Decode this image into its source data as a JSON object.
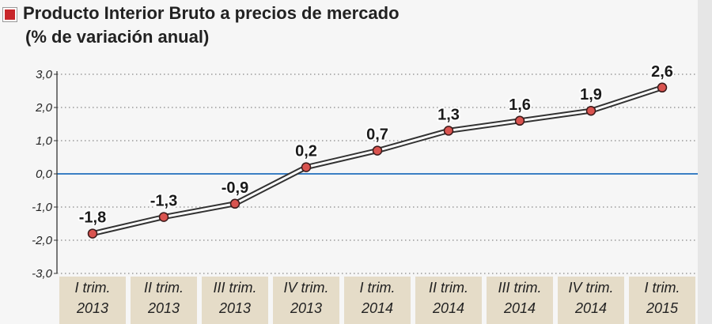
{
  "header": {
    "title": "Producto Interior Bruto a precios de mercado",
    "subtitle": "(% de variación anual)",
    "marker_color": "#c8262a"
  },
  "chart_data": {
    "type": "line",
    "title": "Producto Interior Bruto a precios de mercado",
    "subtitle": "(% de variación anual)",
    "categories": [
      [
        "I trim.",
        "2013"
      ],
      [
        "II trim.",
        "2013"
      ],
      [
        "III trim.",
        "2013"
      ],
      [
        "IV trim.",
        "2013"
      ],
      [
        "I trim.",
        "2014"
      ],
      [
        "II trim.",
        "2014"
      ],
      [
        "III trim.",
        "2014"
      ],
      [
        "IV trim.",
        "2014"
      ],
      [
        "I trim.",
        "2015"
      ]
    ],
    "values": [
      -1.8,
      -1.3,
      -0.9,
      0.2,
      0.7,
      1.3,
      1.6,
      1.9,
      2.6
    ],
    "value_labels": [
      "-1,8",
      "-1,3",
      "-0,9",
      "0,2",
      "0,7",
      "1,3",
      "1,6",
      "1,9",
      "2,6"
    ],
    "y_ticks": [
      {
        "value": 3.0,
        "label": "3,0"
      },
      {
        "value": 2.0,
        "label": "2,0"
      },
      {
        "value": 1.0,
        "label": "1,0"
      },
      {
        "value": 0.0,
        "label": "0,0"
      },
      {
        "value": -1.0,
        "label": "-1,0"
      },
      {
        "value": -2.0,
        "label": "-2,0"
      },
      {
        "value": -3.0,
        "label": "-3,0"
      }
    ],
    "ylim": [
      -3.0,
      3.0
    ],
    "xlabel": "",
    "ylabel": "",
    "grid": true,
    "colors": {
      "line": "#333333",
      "marker_fill": "#d9534f",
      "zero_line": "#3a7fc4",
      "category_band": "#e5dcc8",
      "axis": "#333333",
      "grid": "#888888"
    }
  }
}
